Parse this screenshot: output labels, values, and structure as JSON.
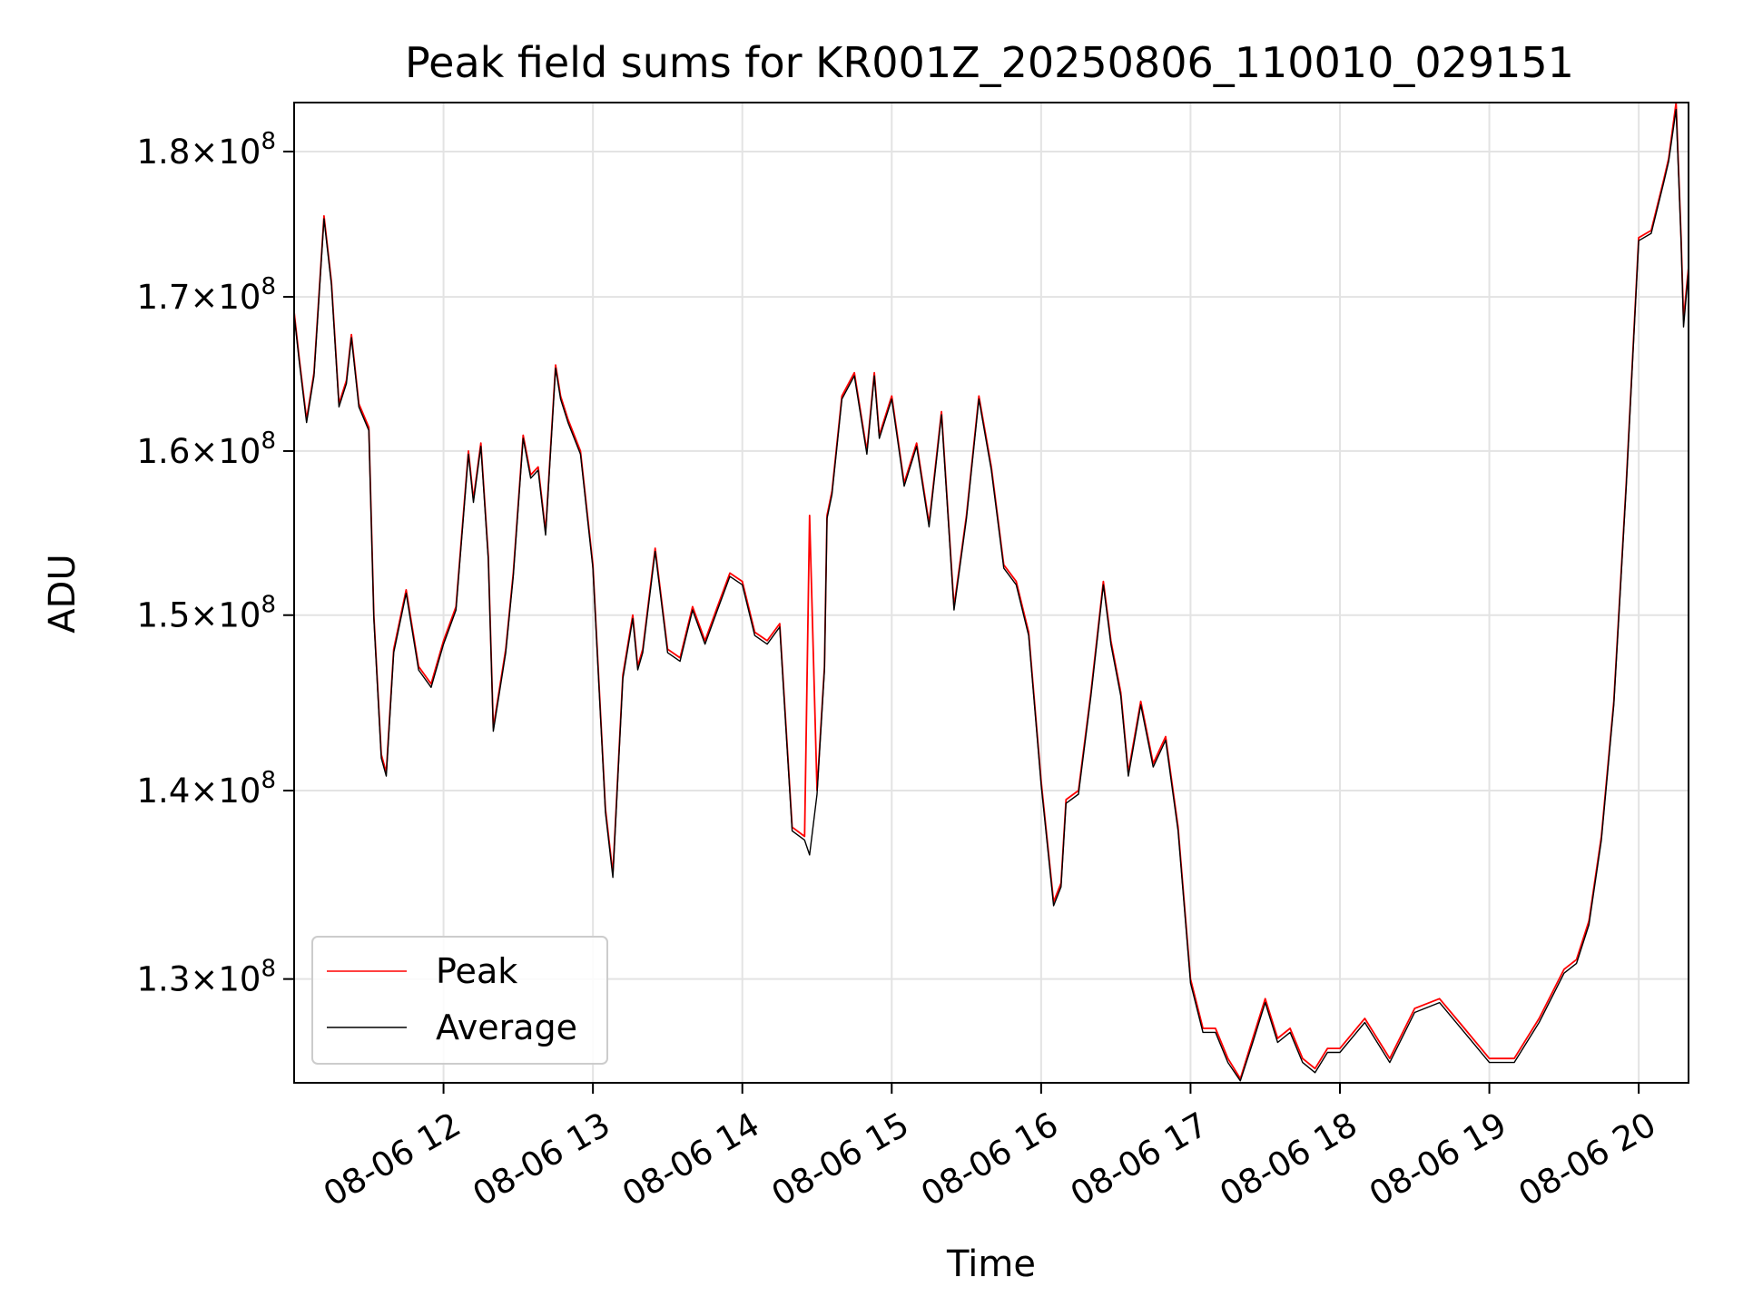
{
  "chart_data": {
    "type": "line",
    "title": "Peak field sums for KR001Z_20250806_110010_029151",
    "xlabel": "Time",
    "ylabel": "ADU",
    "y_scale": "log",
    "grid": true,
    "legend_position": "lower-left",
    "xlim": [
      "08-06 11:00",
      "08-06 20:20"
    ],
    "ylim": [
      124800000,
      183500000
    ],
    "x_ticks": [
      {
        "value": "08-06 12:00",
        "label": "08-06 12"
      },
      {
        "value": "08-06 13:00",
        "label": "08-06 13"
      },
      {
        "value": "08-06 14:00",
        "label": "08-06 14"
      },
      {
        "value": "08-06 15:00",
        "label": "08-06 15"
      },
      {
        "value": "08-06 16:00",
        "label": "08-06 16"
      },
      {
        "value": "08-06 17:00",
        "label": "08-06 17"
      },
      {
        "value": "08-06 18:00",
        "label": "08-06 18"
      },
      {
        "value": "08-06 19:00",
        "label": "08-06 19"
      },
      {
        "value": "08-06 20:00",
        "label": "08-06 20"
      }
    ],
    "y_ticks": [
      {
        "value": 130000000,
        "mantissa": "1.3",
        "exp": "8"
      },
      {
        "value": 140000000,
        "mantissa": "1.4",
        "exp": "8"
      },
      {
        "value": 150000000,
        "mantissa": "1.5",
        "exp": "8"
      },
      {
        "value": 160000000,
        "mantissa": "1.6",
        "exp": "8"
      },
      {
        "value": 170000000,
        "mantissa": "1.7",
        "exp": "8"
      },
      {
        "value": 180000000,
        "mantissa": "1.8",
        "exp": "8"
      }
    ],
    "x": [
      "08-06 11:00",
      "08-06 11:02",
      "08-06 11:05",
      "08-06 11:08",
      "08-06 11:12",
      "08-06 11:15",
      "08-06 11:18",
      "08-06 11:21",
      "08-06 11:23",
      "08-06 11:26",
      "08-06 11:30",
      "08-06 11:32",
      "08-06 11:35",
      "08-06 11:37",
      "08-06 11:40",
      "08-06 11:45",
      "08-06 11:50",
      "08-06 11:55",
      "08-06 12:00",
      "08-06 12:05",
      "08-06 12:10",
      "08-06 12:12",
      "08-06 12:15",
      "08-06 12:18",
      "08-06 12:20",
      "08-06 12:25",
      "08-06 12:28",
      "08-06 12:32",
      "08-06 12:35",
      "08-06 12:38",
      "08-06 12:41",
      "08-06 12:45",
      "08-06 12:47",
      "08-06 12:50",
      "08-06 12:55",
      "08-06 13:00",
      "08-06 13:05",
      "08-06 13:08",
      "08-06 13:12",
      "08-06 13:16",
      "08-06 13:18",
      "08-06 13:20",
      "08-06 13:25",
      "08-06 13:30",
      "08-06 13:35",
      "08-06 13:40",
      "08-06 13:45",
      "08-06 13:50",
      "08-06 13:55",
      "08-06 14:00",
      "08-06 14:05",
      "08-06 14:10",
      "08-06 14:15",
      "08-06 14:20",
      "08-06 14:25",
      "08-06 14:27",
      "08-06 14:30",
      "08-06 14:33",
      "08-06 14:34",
      "08-06 14:36",
      "08-06 14:40",
      "08-06 14:45",
      "08-06 14:50",
      "08-06 14:53",
      "08-06 14:55",
      "08-06 15:00",
      "08-06 15:05",
      "08-06 15:10",
      "08-06 15:15",
      "08-06 15:20",
      "08-06 15:25",
      "08-06 15:30",
      "08-06 15:35",
      "08-06 15:40",
      "08-06 15:45",
      "08-06 15:50",
      "08-06 15:55",
      "08-06 16:00",
      "08-06 16:05",
      "08-06 16:08",
      "08-06 16:10",
      "08-06 16:15",
      "08-06 16:20",
      "08-06 16:25",
      "08-06 16:28",
      "08-06 16:32",
      "08-06 16:35",
      "08-06 16:40",
      "08-06 16:45",
      "08-06 16:50",
      "08-06 16:55",
      "08-06 17:00",
      "08-06 17:05",
      "08-06 17:10",
      "08-06 17:15",
      "08-06 17:20",
      "08-06 17:25",
      "08-06 17:30",
      "08-06 17:35",
      "08-06 17:40",
      "08-06 17:45",
      "08-06 17:50",
      "08-06 17:55",
      "08-06 18:00",
      "08-06 18:10",
      "08-06 18:20",
      "08-06 18:30",
      "08-06 18:40",
      "08-06 18:50",
      "08-06 19:00",
      "08-06 19:10",
      "08-06 19:20",
      "08-06 19:30",
      "08-06 19:35",
      "08-06 19:40",
      "08-06 19:45",
      "08-06 19:50",
      "08-06 19:55",
      "08-06 20:00",
      "08-06 20:05",
      "08-06 20:10",
      "08-06 20:12",
      "08-06 20:15",
      "08-06 20:17",
      "08-06 20:18",
      "08-06 20:20"
    ],
    "series": [
      {
        "name": "Peak",
        "color": "#ff0000",
        "values": [
          169000000,
          166000000,
          162000000,
          165000000,
          175500000,
          171000000,
          163000000,
          164500000,
          167500000,
          163000000,
          161500000,
          150000000,
          142000000,
          141000000,
          148000000,
          151500000,
          147000000,
          146000000,
          148500000,
          150500000,
          160000000,
          157000000,
          160500000,
          153500000,
          143500000,
          148000000,
          152500000,
          161000000,
          158500000,
          159000000,
          155000000,
          165500000,
          163500000,
          162000000,
          160000000,
          153000000,
          139000000,
          135500000,
          146500000,
          150000000,
          147000000,
          148000000,
          154000000,
          148000000,
          147500000,
          150500000,
          148500000,
          150500000,
          152500000,
          152000000,
          149000000,
          148500000,
          149500000,
          138000000,
          137500000,
          156000000,
          140000000,
          147000000,
          156000000,
          157500000,
          163500000,
          165000000,
          160000000,
          165000000,
          161000000,
          163500000,
          158000000,
          160500000,
          155500000,
          162500000,
          150500000,
          156000000,
          163500000,
          159000000,
          153000000,
          152000000,
          149000000,
          140500000,
          134000000,
          135000000,
          139500000,
          140000000,
          145500000,
          152000000,
          148500000,
          145500000,
          141000000,
          145000000,
          141500000,
          143000000,
          138000000,
          130000000,
          127500000,
          127500000,
          126000000,
          125000000,
          127000000,
          129000000,
          127000000,
          127500000,
          126000000,
          125500000,
          126500000,
          126500000,
          128000000,
          126000000,
          128500000,
          129000000,
          127500000,
          126000000,
          126000000,
          128000000,
          130500000,
          131000000,
          133000000,
          137500000,
          145000000,
          158000000,
          174000000,
          174500000,
          178000000,
          179500000,
          183500000,
          174000000,
          168500000,
          172000000
        ]
      },
      {
        "name": "Average",
        "color": "#000000",
        "values": [
          168800000,
          165800000,
          161800000,
          164800000,
          175300000,
          170800000,
          162800000,
          164300000,
          167300000,
          162800000,
          161300000,
          149800000,
          141800000,
          140800000,
          147800000,
          151300000,
          146800000,
          145800000,
          148300000,
          150300000,
          159800000,
          156800000,
          160300000,
          153300000,
          143300000,
          147800000,
          152300000,
          160800000,
          158300000,
          158800000,
          154800000,
          165300000,
          163300000,
          161800000,
          159800000,
          152800000,
          138800000,
          135300000,
          146300000,
          149800000,
          146800000,
          147800000,
          153800000,
          147800000,
          147300000,
          150300000,
          148300000,
          150300000,
          152300000,
          151800000,
          148800000,
          148300000,
          149300000,
          137800000,
          137300000,
          136500000,
          139800000,
          146800000,
          155800000,
          157300000,
          163300000,
          164800000,
          159800000,
          164800000,
          160800000,
          163300000,
          157800000,
          160300000,
          155300000,
          162300000,
          150300000,
          155800000,
          163300000,
          158800000,
          152800000,
          151800000,
          148800000,
          140300000,
          133800000,
          134800000,
          139300000,
          139800000,
          145300000,
          151800000,
          148300000,
          145300000,
          140800000,
          144800000,
          141300000,
          142800000,
          137800000,
          129800000,
          127300000,
          127300000,
          125800000,
          124900000,
          126800000,
          128800000,
          126800000,
          127300000,
          125800000,
          125300000,
          126300000,
          126300000,
          127800000,
          125800000,
          128300000,
          128800000,
          127300000,
          125800000,
          125800000,
          127800000,
          130300000,
          130800000,
          132800000,
          137300000,
          144800000,
          157800000,
          173800000,
          174300000,
          177800000,
          179300000,
          183000000,
          173800000,
          168000000,
          171800000
        ]
      }
    ]
  }
}
